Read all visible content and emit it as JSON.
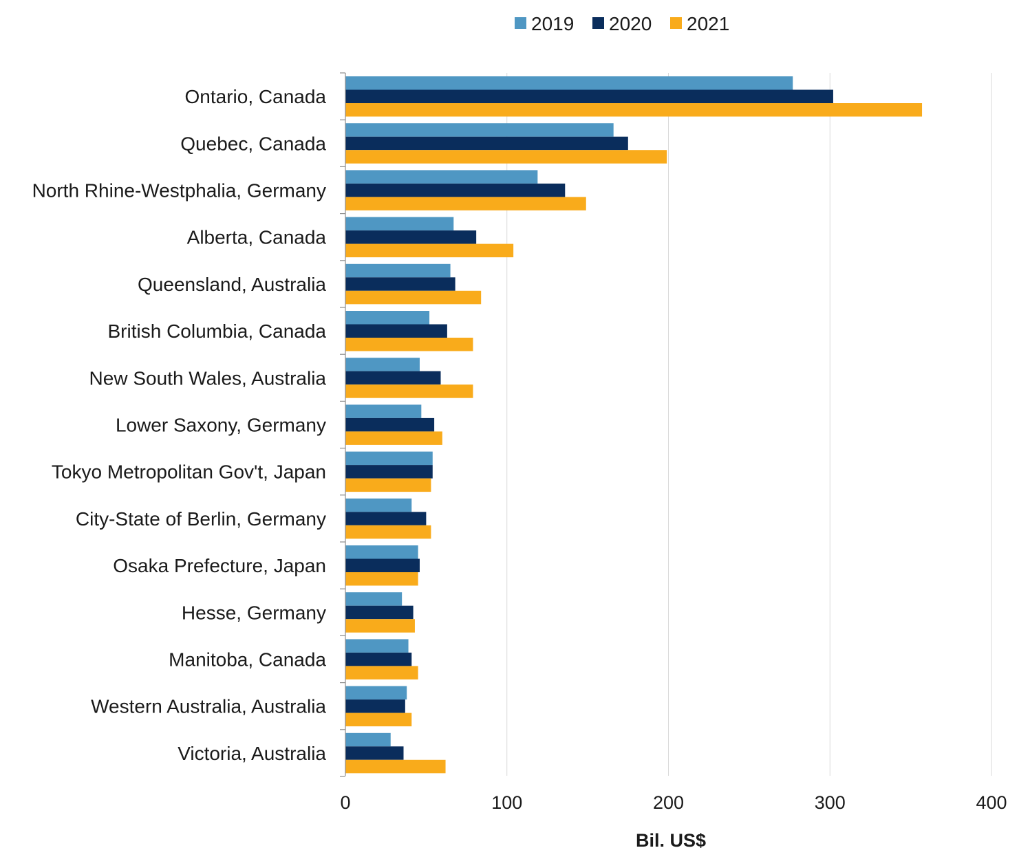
{
  "chart_data": {
    "type": "bar",
    "orientation": "horizontal",
    "categories": [
      "Ontario, Canada",
      "Quebec, Canada",
      "North Rhine-Westphalia, Germany",
      "Alberta, Canada",
      "Queensland, Australia",
      "British Columbia, Canada",
      "New South Wales, Australia",
      "Lower Saxony, Germany",
      "Tokyo Metropolitan Gov't, Japan",
      "City-State of Berlin, Germany",
      "Osaka Prefecture, Japan",
      "Hesse, Germany",
      "Manitoba, Canada",
      "Western Australia, Australia",
      "Victoria, Australia"
    ],
    "series": [
      {
        "name": "2019",
        "color": "#4f97c3",
        "values": [
          277,
          166,
          119,
          67,
          65,
          52,
          46,
          47,
          54,
          41,
          45,
          35,
          39,
          38,
          28
        ]
      },
      {
        "name": "2020",
        "color": "#0a2d5c",
        "values": [
          302,
          175,
          136,
          81,
          68,
          63,
          59,
          55,
          54,
          50,
          46,
          42,
          41,
          37,
          36
        ]
      },
      {
        "name": "2021",
        "color": "#f9ab1b",
        "values": [
          357,
          199,
          149,
          104,
          84,
          79,
          79,
          60,
          53,
          53,
          45,
          43,
          45,
          41,
          62
        ]
      }
    ],
    "xlabel": "Bil. US$",
    "ylabel": "",
    "xlim": [
      0,
      400
    ],
    "xticks": [
      "0",
      "100",
      "200",
      "300",
      "400"
    ],
    "grid": "vertical",
    "legend": "top-center"
  }
}
